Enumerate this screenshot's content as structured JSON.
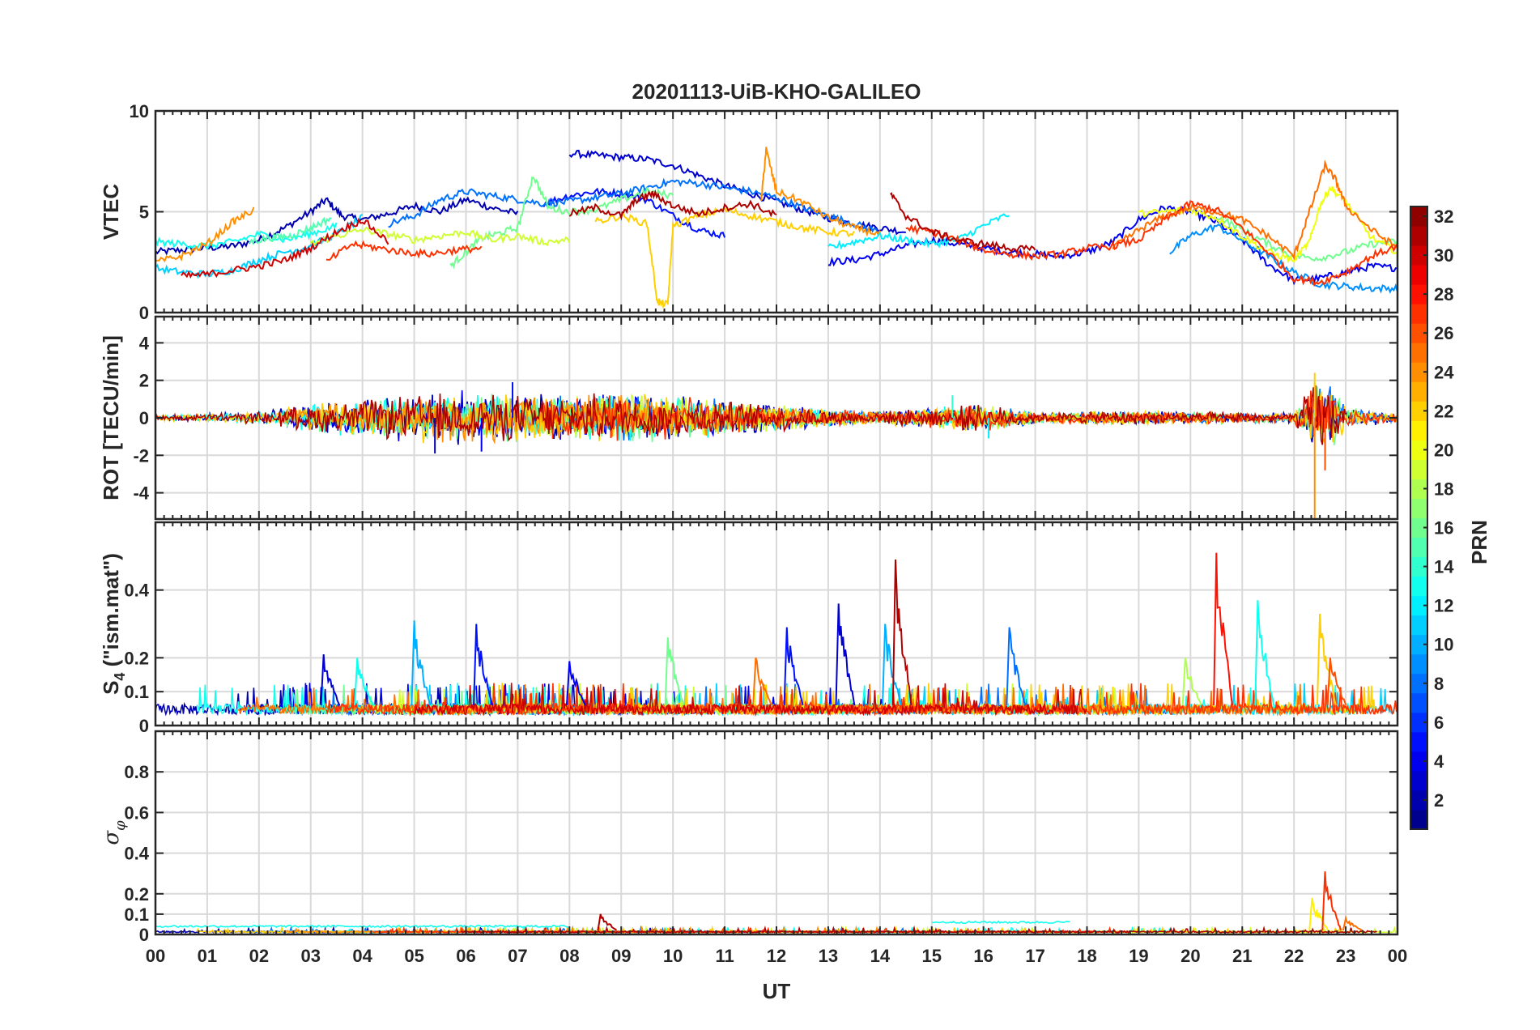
{
  "chart_data": {
    "title": "20201113-UiB-KHO-GALILEO",
    "type": "line",
    "xlabel": "UT",
    "x_tick_labels": [
      "00",
      "01",
      "02",
      "03",
      "04",
      "05",
      "06",
      "07",
      "08",
      "09",
      "10",
      "11",
      "12",
      "13",
      "14",
      "15",
      "16",
      "17",
      "18",
      "19",
      "20",
      "21",
      "22",
      "23",
      "00"
    ],
    "xlim": [
      0,
      24
    ],
    "grid": true,
    "colorbar": {
      "label": "PRN",
      "range": [
        1,
        32
      ],
      "tick_labels": [
        "2",
        "4",
        "6",
        "8",
        "10",
        "12",
        "14",
        "16",
        "18",
        "20",
        "22",
        "24",
        "26",
        "28",
        "30",
        "32"
      ],
      "tick_values": [
        2,
        4,
        6,
        8,
        10,
        12,
        14,
        16,
        18,
        20,
        22,
        24,
        26,
        28,
        30,
        32
      ],
      "colormap": "jet"
    },
    "panels": [
      {
        "id": "vtec",
        "ylabel": "VTEC",
        "ylim": [
          0,
          10
        ],
        "y_ticks": [
          0,
          5,
          10
        ],
        "y_tick_labels": [
          "0",
          "5",
          "10"
        ],
        "series": [
          {
            "prn": 2,
            "x": [
              0,
              0.5,
              1,
              1.5,
              2,
              2.5,
              3,
              3.3,
              3.6,
              4,
              4.5,
              5,
              5.5,
              6,
              6.5,
              7
            ],
            "y": [
              3.0,
              3.1,
              3.2,
              3.3,
              3.6,
              4.2,
              5.0,
              5.6,
              4.8,
              4.6,
              4.9,
              5.3,
              5.0,
              5.6,
              5.2,
              4.9
            ]
          },
          {
            "prn": 3,
            "x": [
              8,
              8.5,
              9,
              9.5,
              10,
              10.5,
              11,
              11.5,
              12,
              12.5,
              13,
              13.5,
              14,
              14.5
            ],
            "y": [
              7.9,
              7.8,
              7.7,
              7.6,
              7.3,
              6.8,
              6.3,
              5.9,
              5.5,
              5.1,
              4.7,
              4.4,
              4.2,
              4.0
            ]
          },
          {
            "prn": 4,
            "x": [
              13,
              13.5,
              14,
              14.5,
              15,
              15.5,
              16,
              16.5,
              17,
              17.5,
              18,
              18.5,
              19,
              19.5,
              20,
              20.5,
              21,
              21.5,
              22,
              22.5,
              23,
              23.5,
              24
            ],
            "y": [
              2.5,
              2.6,
              2.9,
              3.3,
              3.6,
              3.4,
              3.2,
              3.0,
              2.9,
              2.8,
              3.0,
              3.5,
              4.6,
              5.2,
              5.0,
              4.5,
              3.6,
              2.4,
              1.6,
              1.7,
              2.0,
              2.3,
              2.2
            ]
          },
          {
            "prn": 5,
            "x": [
              7.5,
              8,
              8.5,
              9,
              9.5,
              10,
              10.5,
              11
            ],
            "y": [
              5.4,
              5.8,
              6.0,
              5.9,
              5.6,
              4.8,
              4.1,
              3.8
            ]
          },
          {
            "prn": 8,
            "x": [
              4.5,
              5,
              5.5,
              6,
              6.5,
              7,
              7.5,
              8,
              8.5,
              9,
              9.5,
              10,
              10.5,
              11,
              11.5,
              12,
              12.5,
              13,
              13.5,
              14
            ],
            "y": [
              4.4,
              4.8,
              5.6,
              6.0,
              5.8,
              5.6,
              5.4,
              5.5,
              5.7,
              5.9,
              6.2,
              6.5,
              6.4,
              6.2,
              6.0,
              5.7,
              5.2,
              4.8,
              4.4,
              4.0
            ]
          },
          {
            "prn": 9,
            "x": [
              19.6,
              20,
              20.5,
              21,
              21.5,
              22,
              22.5,
              23,
              23.5,
              24
            ],
            "y": [
              3.0,
              3.8,
              4.3,
              3.6,
              2.8,
              2.0,
              1.4,
              1.3,
              1.2,
              1.2
            ]
          },
          {
            "prn": 11,
            "x": [
              0,
              0.5,
              1,
              1.5,
              2,
              2.5,
              3,
              3.5,
              4
            ],
            "y": [
              2.2,
              2.0,
              1.9,
              2.1,
              2.6,
              3.0,
              3.3,
              3.9,
              4.7
            ]
          },
          {
            "prn": 12,
            "x": [
              13,
              13.5,
              14,
              14.5,
              15,
              15.5,
              16,
              16.5
            ],
            "y": [
              3.2,
              3.5,
              3.8,
              3.6,
              3.4,
              3.6,
              4.3,
              4.9
            ]
          },
          {
            "prn": 13,
            "x": [
              0,
              0.5,
              1,
              1.5,
              2,
              2.5,
              3,
              3.5
            ],
            "y": [
              3.5,
              3.4,
              3.3,
              3.5,
              3.9,
              3.6,
              3.9,
              4.3
            ]
          },
          {
            "prn": 15,
            "x": [
              1.8,
              2.2,
              2.6,
              3,
              3.4
            ],
            "y": [
              3.5,
              3.7,
              3.8,
              4.2,
              4.7
            ]
          },
          {
            "prn": 16,
            "x": [
              5.7,
              6,
              6.3,
              6.6,
              7,
              7.3,
              7.6,
              8,
              8.5,
              9,
              9.5,
              10
            ],
            "y": [
              2.3,
              3.0,
              3.7,
              3.9,
              4.2,
              6.8,
              5.2,
              5.0,
              5.1,
              5.6,
              6.0,
              5.8
            ]
          },
          {
            "prn": 16,
            "x": [
              20.5,
              21,
              21.5,
              22,
              22.5,
              23,
              23.5,
              24
            ],
            "y": [
              4.8,
              4.1,
              3.4,
              2.8,
              2.7,
              3.0,
              3.4,
              3.5
            ]
          },
          {
            "prn": 19,
            "x": [
              3,
              3.5,
              4,
              4.5,
              5,
              5.5,
              6,
              6.5,
              7,
              7.5,
              8
            ],
            "y": [
              3.4,
              3.8,
              4.1,
              3.9,
              3.6,
              3.8,
              4.0,
              3.6,
              3.8,
              3.5,
              3.6
            ]
          },
          {
            "prn": 20,
            "x": [
              19,
              19.5,
              20,
              20.5,
              21,
              21.5,
              22,
              22.3,
              22.5,
              22.7,
              23,
              23.5,
              24
            ],
            "y": [
              4.9,
              5.0,
              5.1,
              4.7,
              3.8,
              3.0,
              2.6,
              3.5,
              5.3,
              6.2,
              5.5,
              3.7,
              3.0
            ]
          },
          {
            "prn": 22,
            "x": [
              8.5,
              9,
              9.5,
              9.7,
              9.9,
              10,
              10.5,
              11,
              11.5,
              12,
              12.5,
              13,
              13.5
            ],
            "y": [
              4.5,
              4.8,
              4.4,
              0.5,
              0.4,
              4.3,
              4.8,
              5.1,
              4.8,
              4.5,
              4.2,
              4.0,
              3.9
            ]
          },
          {
            "prn": 24,
            "x": [
              0,
              0.5,
              1,
              1.5,
              1.9
            ],
            "y": [
              2.5,
              2.8,
              3.4,
              4.5,
              5.1
            ]
          },
          {
            "prn": 24,
            "x": [
              11.7,
              11.8,
              12,
              12.5,
              13,
              13.5,
              14
            ],
            "y": [
              5.4,
              8.1,
              6.0,
              5.5,
              4.7,
              4.2,
              3.9
            ]
          },
          {
            "prn": 25,
            "x": [
              18.5,
              19,
              19.5,
              20,
              20.5,
              21,
              21.5,
              22,
              22.3,
              22.6,
              22.8,
              23,
              23.5,
              24
            ],
            "y": [
              3.2,
              4.1,
              4.8,
              5.2,
              5.0,
              4.6,
              3.8,
              2.8,
              5.0,
              7.3,
              6.6,
              5.3,
              4.1,
              3.2
            ]
          },
          {
            "prn": 27,
            "x": [
              14.5,
              15,
              15.5,
              16,
              16.5,
              17,
              17.5,
              18,
              18.5,
              19,
              19.5,
              20,
              20.5,
              21,
              21.5,
              22,
              22.5,
              23,
              23.5,
              24
            ],
            "y": [
              4.2,
              4.0,
              3.6,
              3.1,
              2.9,
              2.8,
              2.9,
              3.2,
              3.3,
              3.6,
              4.6,
              5.4,
              5.1,
              4.2,
              3.0,
              1.7,
              1.5,
              2.0,
              2.8,
              3.3
            ]
          },
          {
            "prn": 27,
            "x": [
              3.3,
              3.8,
              4.3,
              4.8,
              5.3,
              5.8,
              6.3
            ],
            "y": [
              2.5,
              3.4,
              3.2,
              3.0,
              2.9,
              3.1,
              3.2
            ]
          },
          {
            "prn": 30,
            "x": [
              0.5,
              1,
              1.5,
              2,
              2.5,
              3,
              3.5,
              4,
              4.5
            ],
            "y": [
              1.8,
              1.9,
              2.1,
              2.3,
              2.6,
              3.2,
              4.0,
              4.6,
              3.5
            ]
          },
          {
            "prn": 31,
            "x": [
              8,
              8.5,
              9,
              9.3,
              9.6,
              10,
              10.5,
              11,
              11.5,
              12
            ],
            "y": [
              4.9,
              5.2,
              4.8,
              5.6,
              5.9,
              5.3,
              4.9,
              5.2,
              5.4,
              4.8
            ]
          },
          {
            "prn": 31,
            "x": [
              14.2,
              14.5,
              15,
              15.5,
              16,
              16.5,
              17
            ],
            "y": [
              5.9,
              4.8,
              4.0,
              3.6,
              3.4,
              3.2,
              3.1
            ]
          }
        ]
      },
      {
        "id": "rot",
        "ylabel": "ROT [TECU/min]",
        "ylim": [
          -5.4,
          5.4
        ],
        "y_ticks": [
          -4,
          -2,
          0,
          2,
          4
        ],
        "y_tick_labels": [
          "-4",
          "-2",
          "0",
          "2",
          "4"
        ],
        "noise_envelope": {
          "x": [
            0,
            2,
            3,
            4,
            5,
            6,
            7,
            8,
            9,
            10,
            11,
            12,
            13,
            14,
            15,
            16,
            17,
            18,
            19,
            20,
            21,
            22,
            22.4,
            22.8,
            23,
            24
          ],
          "amp": [
            0.15,
            0.35,
            0.8,
            1.1,
            1.4,
            1.5,
            1.4,
            1.3,
            1.4,
            1.3,
            1.0,
            0.8,
            0.5,
            0.35,
            0.6,
            0.8,
            0.3,
            0.35,
            0.4,
            0.35,
            0.3,
            0.3,
            2.4,
            1.6,
            0.6,
            0.3
          ]
        },
        "spikes": [
          {
            "prn": 24,
            "x": 22.4,
            "y": -5.4
          },
          {
            "prn": 22,
            "x": 22.4,
            "y": 2.4
          },
          {
            "prn": 26,
            "x": 22.6,
            "y": -2.8
          },
          {
            "prn": 4,
            "x": 6.3,
            "y": -1.8
          },
          {
            "prn": 2,
            "x": 5.4,
            "y": -1.9
          },
          {
            "prn": 5,
            "x": 6.9,
            "y": 1.9
          },
          {
            "prn": 12,
            "x": 16.1,
            "y": -1.1
          },
          {
            "prn": 14,
            "x": 15.4,
            "y": 1.2
          }
        ]
      },
      {
        "id": "s4",
        "ylabel": "S4 (\"ism.mat\")",
        "ylim": [
          0,
          0.6
        ],
        "y_ticks": [
          0,
          0.1,
          0.2,
          0.4
        ],
        "y_tick_labels": [
          "0",
          "0.1",
          "0.2",
          "0.4"
        ],
        "baseline": 0.06,
        "spikes": [
          {
            "prn": 3,
            "x": 3.25,
            "y": 0.21
          },
          {
            "prn": 13,
            "x": 3.9,
            "y": 0.2
          },
          {
            "prn": 10,
            "x": 5.0,
            "y": 0.31
          },
          {
            "prn": 5,
            "x": 6.2,
            "y": 0.3
          },
          {
            "prn": 4,
            "x": 8.0,
            "y": 0.19
          },
          {
            "prn": 16,
            "x": 9.9,
            "y": 0.26
          },
          {
            "prn": 25,
            "x": 11.6,
            "y": 0.2
          },
          {
            "prn": 5,
            "x": 12.2,
            "y": 0.29
          },
          {
            "prn": 3,
            "x": 13.2,
            "y": 0.36
          },
          {
            "prn": 10,
            "x": 14.1,
            "y": 0.3
          },
          {
            "prn": 31,
            "x": 14.3,
            "y": 0.49
          },
          {
            "prn": 8,
            "x": 16.5,
            "y": 0.29
          },
          {
            "prn": 18,
            "x": 19.9,
            "y": 0.2
          },
          {
            "prn": 28,
            "x": 20.5,
            "y": 0.51
          },
          {
            "prn": 13,
            "x": 21.3,
            "y": 0.37
          },
          {
            "prn": 22,
            "x": 22.5,
            "y": 0.33
          },
          {
            "prn": 26,
            "x": 22.7,
            "y": 0.2
          }
        ]
      },
      {
        "id": "sigma",
        "ylabel": "σφ",
        "ylim": [
          0,
          1
        ],
        "y_ticks": [
          0,
          0.1,
          0.2,
          0.4,
          0.6,
          0.8
        ],
        "y_tick_labels": [
          "0",
          "0.1",
          "0.2",
          "0.4",
          "0.6",
          "0.8"
        ],
        "baseline": 0.02,
        "spikes": [
          {
            "prn": 21,
            "x": 22.35,
            "y": 0.18
          },
          {
            "prn": 27,
            "x": 22.6,
            "y": 0.31
          },
          {
            "prn": 25,
            "x": 23.0,
            "y": 0.08
          },
          {
            "prn": 31,
            "x": 8.6,
            "y": 0.1
          }
        ],
        "plateaus": [
          {
            "prn": 13,
            "x": [
              0,
              8
            ],
            "y": 0.04
          },
          {
            "prn": 13,
            "x": [
              15,
              17.7
            ],
            "y": 0.06
          }
        ]
      }
    ]
  }
}
